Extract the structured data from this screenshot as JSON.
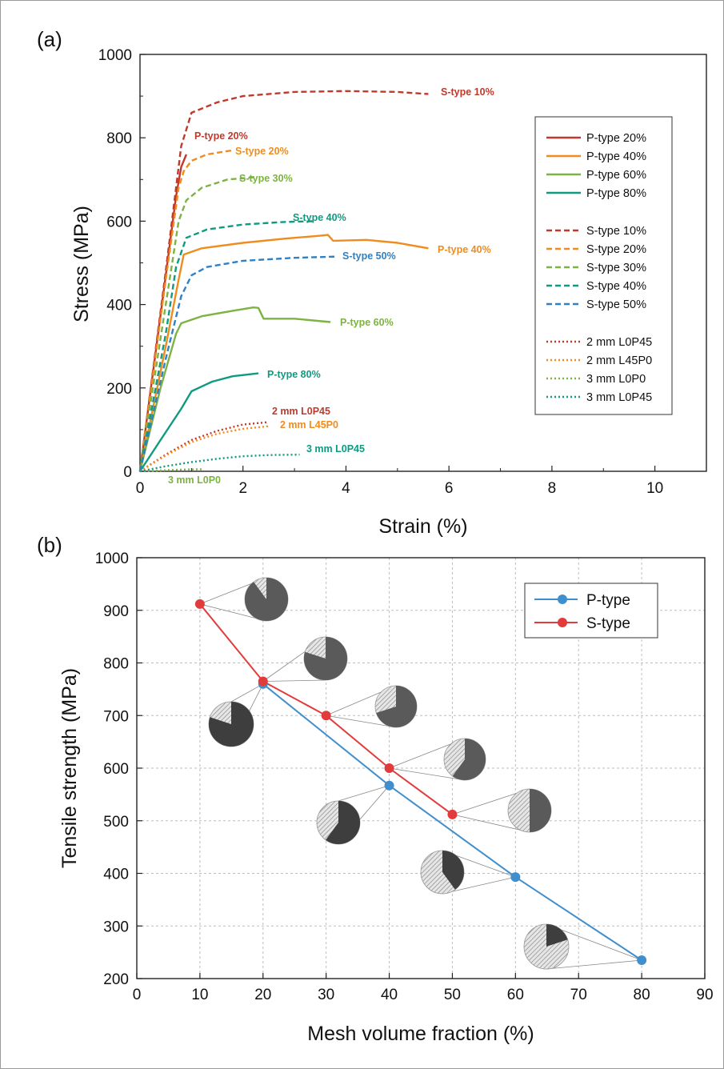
{
  "chart_data": [
    {
      "panel_label": "(a)",
      "type": "line",
      "xlabel": "Strain (%)",
      "ylabel": "Stress (MPa)",
      "xlim": [
        0,
        11
      ],
      "ylim": [
        0,
        1000
      ],
      "xticks": [
        0,
        2,
        4,
        6,
        8,
        10
      ],
      "yticks": [
        0,
        200,
        400,
        600,
        800,
        1000
      ],
      "grid": false,
      "legend_position": "right",
      "series": [
        {
          "name": "P-type 20%",
          "label": "P-type 20%",
          "color": "#c0392b",
          "style": "solid",
          "x": [
            0,
            0.5,
            0.7,
            0.8,
            0.9
          ],
          "y": [
            0,
            470,
            660,
            730,
            760
          ]
        },
        {
          "name": "P-type 40%",
          "label": "P-type 40%",
          "color": "#f08c1e",
          "style": "solid",
          "x": [
            0,
            0.5,
            0.75,
            0.85,
            1.2,
            2,
            2.8,
            3.5,
            3.65,
            3.75,
            4.4,
            5,
            5.6
          ],
          "y": [
            0,
            300,
            460,
            520,
            535,
            548,
            558,
            565,
            567,
            553,
            555,
            548,
            535
          ]
        },
        {
          "name": "P-type 60%",
          "label": "P-type 60%",
          "color": "#7cb342",
          "style": "solid",
          "x": [
            0,
            0.4,
            0.7,
            0.8,
            1.2,
            1.8,
            2.2,
            2.3,
            2.4,
            3,
            3.7
          ],
          "y": [
            0,
            200,
            330,
            355,
            372,
            385,
            393,
            392,
            366,
            366,
            358
          ]
        },
        {
          "name": "P-type 80%",
          "label": "P-type 80%",
          "color": "#0f9b80",
          "style": "solid",
          "x": [
            0,
            0.4,
            0.8,
            1.0,
            1.4,
            1.8,
            2.3
          ],
          "y": [
            0,
            75,
            150,
            192,
            215,
            228,
            235
          ]
        },
        {
          "name": "S-type 10%",
          "label": "S-type 10%",
          "color": "#c0392b",
          "style": "dashed",
          "x": [
            0,
            0.5,
            0.8,
            1.0,
            1.5,
            2,
            3,
            4,
            5,
            5.6
          ],
          "y": [
            0,
            480,
            780,
            860,
            885,
            900,
            910,
            912,
            910,
            905
          ]
        },
        {
          "name": "S-type 20%",
          "label": "S-type 20%",
          "color": "#f08c1e",
          "style": "dashed",
          "x": [
            0,
            0.5,
            0.75,
            0.85,
            1.0,
            1.3,
            1.8
          ],
          "y": [
            0,
            460,
            680,
            720,
            745,
            760,
            770
          ]
        },
        {
          "name": "S-type 30%",
          "label": "S-type 30%",
          "color": "#7cb342",
          "style": "dashed",
          "x": [
            0,
            0.5,
            0.75,
            0.9,
            1.2,
            1.7,
            2.2
          ],
          "y": [
            0,
            400,
            600,
            650,
            680,
            700,
            705
          ]
        },
        {
          "name": "S-type 40%",
          "label": "S-type 40%",
          "color": "#0f9b80",
          "style": "dashed",
          "x": [
            0,
            0.5,
            0.7,
            0.9,
            1.3,
            2,
            2.8,
            3.4
          ],
          "y": [
            0,
            330,
            490,
            560,
            580,
            592,
            598,
            600
          ]
        },
        {
          "name": "S-type 50%",
          "label": "S-type 50%",
          "color": "#2f80c4",
          "style": "dashed",
          "x": [
            0,
            0.5,
            0.8,
            1.0,
            1.3,
            2,
            3,
            3.8
          ],
          "y": [
            0,
            270,
            420,
            470,
            490,
            505,
            512,
            515
          ]
        },
        {
          "name": "2 mm L0P45",
          "label": "2 mm L0P45",
          "color": "#c0392b",
          "style": "dotted",
          "x": [
            0,
            0.5,
            1,
            1.5,
            2,
            2.5
          ],
          "y": [
            0,
            40,
            75,
            97,
            112,
            118
          ]
        },
        {
          "name": "2 mm L45P0",
          "label": "2 mm L45P0",
          "color": "#f08c1e",
          "style": "dotted",
          "x": [
            0,
            0.5,
            1,
            1.5,
            2,
            2.5
          ],
          "y": [
            0,
            38,
            70,
            90,
            102,
            108
          ]
        },
        {
          "name": "3 mm L0P0",
          "label": "3 mm L0P0",
          "color": "#7cb342",
          "style": "dotted",
          "x": [
            0,
            0.4,
            0.8,
            1.2
          ],
          "y": [
            0,
            2,
            4,
            5
          ]
        },
        {
          "name": "3 mm L0P45",
          "label": "3 mm L0P45",
          "color": "#0f9b80",
          "style": "dotted",
          "x": [
            0,
            0.5,
            1,
            1.5,
            2,
            2.5,
            3.1
          ],
          "y": [
            0,
            12,
            22,
            30,
            36,
            39,
            40
          ]
        }
      ]
    },
    {
      "panel_label": "(b)",
      "type": "line",
      "xlabel": "Mesh volume fraction (%)",
      "ylabel": "Tensile strength (MPa)",
      "xlim": [
        0,
        90
      ],
      "ylim": [
        200,
        1000
      ],
      "xticks": [
        0,
        10,
        20,
        30,
        40,
        50,
        60,
        70,
        80,
        90
      ],
      "yticks": [
        200,
        300,
        400,
        500,
        600,
        700,
        800,
        900,
        1000
      ],
      "grid": true,
      "legend_position": "top-right",
      "series": [
        {
          "name": "P-type",
          "color": "#3f8fce",
          "x": [
            20,
            40,
            60,
            80
          ],
          "y": [
            760,
            567,
            393,
            235
          ]
        },
        {
          "name": "S-type",
          "color": "#e23b3b",
          "x": [
            10,
            20,
            30,
            40,
            50
          ],
          "y": [
            912,
            765,
            700,
            600,
            512
          ]
        }
      ]
    }
  ]
}
